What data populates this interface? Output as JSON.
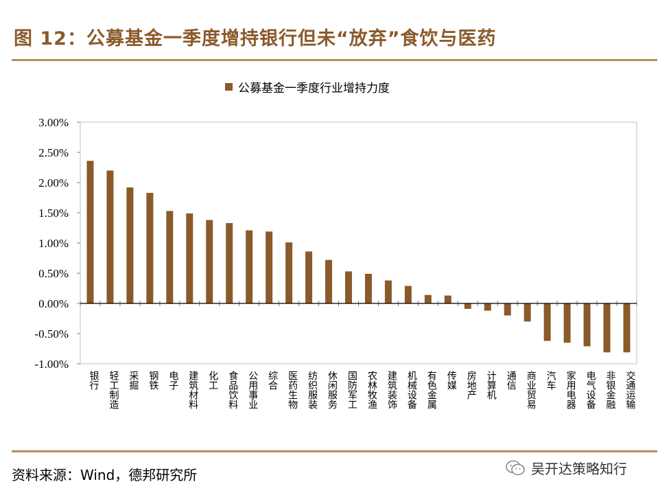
{
  "figure": {
    "title": "图 12：公募基金一季度增持银行但未“放弃”食饮与医药",
    "source": "资料来源：Wind，德邦研究所",
    "watermark": "吴开达策略知行"
  },
  "colors": {
    "bar": "#8b5a2b",
    "rule": "#b98c5f",
    "title": "#8b5a2b"
  },
  "chart_data": {
    "type": "bar",
    "title": "",
    "xlabel": "",
    "ylabel": "",
    "ylim": [
      -1.0,
      3.0
    ],
    "yticks": [
      -1.0,
      -0.5,
      0.0,
      0.5,
      1.0,
      1.5,
      2.0,
      2.5,
      3.0
    ],
    "ytick_labels": [
      "-1.00%",
      "-0.50%",
      "0.00%",
      "0.50%",
      "1.00%",
      "1.50%",
      "2.00%",
      "2.50%",
      "3.00%"
    ],
    "grid": false,
    "legend_position": "top-center",
    "categories": [
      "银行",
      "轻工制造",
      "采掘",
      "钢铁",
      "电子",
      "建筑材料",
      "化工",
      "食品饮料",
      "公用事业",
      "综合",
      "医药生物",
      "纺织服装",
      "休闲服务",
      "国防军工",
      "农林牧渔",
      "建筑装饰",
      "机械设备",
      "有色金属",
      "传媒",
      "房地产",
      "计算机",
      "通信",
      "商业贸易",
      "汽车",
      "家用电器",
      "电气设备",
      "非银金融",
      "交通运输"
    ],
    "series": [
      {
        "name": "公募基金一季度行业增持力度",
        "unit": "%",
        "values": [
          2.36,
          2.2,
          1.92,
          1.83,
          1.53,
          1.49,
          1.38,
          1.33,
          1.21,
          1.19,
          1.01,
          0.86,
          0.72,
          0.53,
          0.49,
          0.38,
          0.29,
          0.14,
          0.13,
          -0.09,
          -0.12,
          -0.2,
          -0.3,
          -0.62,
          -0.65,
          -0.71,
          -0.81,
          -0.81
        ]
      }
    ]
  }
}
